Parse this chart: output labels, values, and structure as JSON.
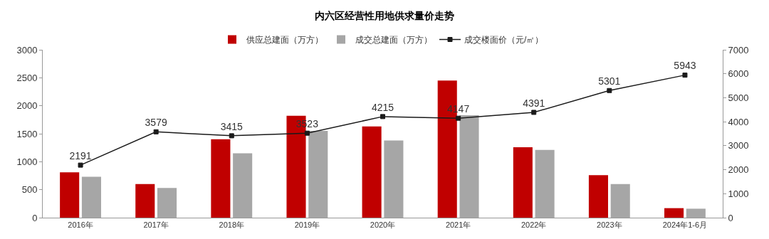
{
  "chart_data": {
    "type": "bar",
    "title": "内六区经营性用地供求量价走势",
    "categories": [
      "2016年",
      "2017年",
      "2018年",
      "2019年",
      "2020年",
      "2021年",
      "2022年",
      "2023年",
      "2024年1-6月"
    ],
    "series": [
      {
        "name": "供应总建面（万方）",
        "color": "#c00000",
        "values": [
          810,
          600,
          1400,
          1820,
          1630,
          2450,
          1260,
          760,
          170
        ]
      },
      {
        "name": "成交总建面（万方）",
        "color": "#a6a6a6",
        "values": [
          730,
          530,
          1150,
          1550,
          1380,
          1830,
          1210,
          600,
          160
        ]
      },
      {
        "name": "成交楼面价（元/㎡）",
        "type": "line",
        "axis": "y2",
        "color": "#1a1a1a",
        "marker": "square",
        "values": [
          2191,
          3579,
          3415,
          3523,
          4215,
          4147,
          4391,
          5301,
          5943
        ],
        "value_labels": [
          "2191",
          "3579",
          "3415",
          "3523",
          "4215",
          "4147",
          "4391",
          "5301",
          "5943"
        ]
      }
    ],
    "ylim": [
      0,
      3000
    ],
    "yticks": [
      0,
      500,
      1000,
      1500,
      2000,
      2500,
      3000
    ],
    "y2lim": [
      0,
      7000
    ],
    "y2ticks": [
      0,
      1000,
      2000,
      3000,
      4000,
      5000,
      6000,
      7000
    ],
    "grid": false,
    "legend": "top"
  }
}
